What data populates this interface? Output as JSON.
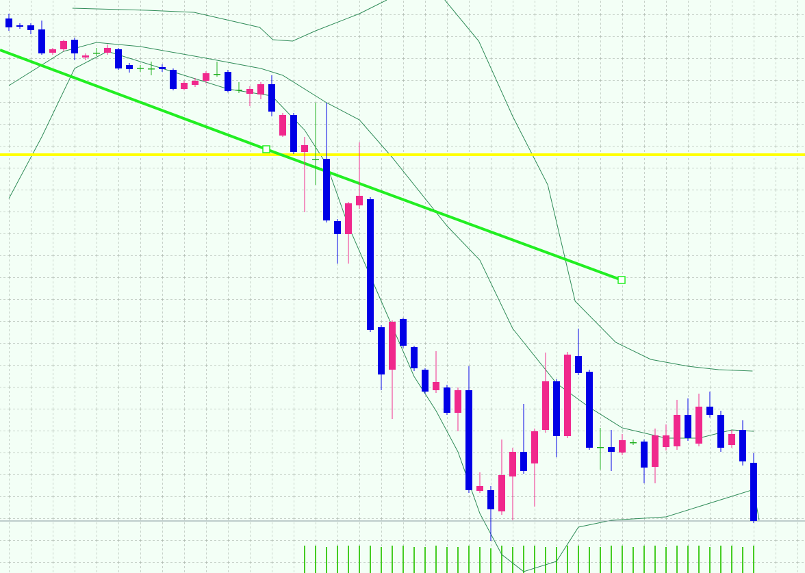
{
  "chart_data": {
    "type": "candlestick",
    "open": [
      813,
      803,
      803,
      797,
      763,
      768,
      782,
      756,
      763,
      763,
      768,
      745,
      741,
      740,
      742,
      738,
      710,
      716,
      722,
      732,
      735,
      709,
      703,
      702,
      717,
      642,
      672,
      618,
      608,
      608,
      517,
      498,
      540,
      549,
      362,
      300,
      374,
      333,
      300,
      270,
      274,
      237,
      270,
      123,
      124,
      93,
      144,
      180,
      163,
      212,
      283,
      203,
      320,
      297,
      187,
      187,
      179,
      194,
      195,
      158,
      187,
      188,
      234,
      192,
      246,
      234,
      190,
      212,
      164
    ],
    "high": [
      820,
      806,
      806,
      810,
      770,
      782,
      785,
      762,
      770,
      775,
      770,
      748,
      745,
      750,
      746,
      740,
      722,
      726,
      736,
      750,
      738,
      720,
      714,
      720,
      730,
      675,
      675,
      640,
      690,
      690,
      520,
      545,
      632,
      552,
      365,
      372,
      376,
      335,
      302,
      327,
      278,
      274,
      305,
      150,
      130,
      198,
      186,
      250,
      214,
      325,
      286,
      326,
      360,
      300,
      215,
      212,
      206,
      198,
      198,
      214,
      220,
      256,
      258,
      265,
      268,
      240,
      212,
      226,
      178
    ],
    "low": [
      795,
      798,
      790,
      760,
      760,
      765,
      752,
      752,
      758,
      760,
      738,
      734,
      735,
      730,
      735,
      708,
      708,
      713,
      718,
      728,
      705,
      704,
      685,
      695,
      670,
      640,
      615,
      530,
      570,
      515,
      455,
      455,
      535,
      355,
      270,
      228,
      332,
      298,
      265,
      266,
      234,
      210,
      120,
      120,
      50,
      88,
      80,
      148,
      100,
      208,
      172,
      200,
      292,
      183,
      154,
      152,
      175,
      190,
      134,
      134,
      182,
      183,
      196,
      188,
      230,
      180,
      186,
      160,
      76
    ],
    "close": [
      800,
      801,
      796,
      762,
      768,
      780,
      762,
      759,
      763,
      770,
      740,
      739,
      741,
      740,
      739,
      710,
      719,
      722,
      733,
      732,
      707,
      709,
      710,
      717,
      677,
      672,
      618,
      628,
      608,
      518,
      498,
      543,
      554,
      358,
      293,
      370,
      335,
      302,
      268,
      282,
      237,
      270,
      124,
      130,
      96,
      146,
      180,
      152,
      210,
      283,
      203,
      322,
      295,
      186,
      187,
      180,
      197,
      194,
      157,
      204,
      204,
      234,
      200,
      246,
      234,
      186,
      206,
      166,
      79
    ],
    "up_color": "#f0288c",
    "down_color": "#0000e6",
    "doji_color": "#20b020",
    "xlim": [
      -0.8125,
      72.6875
    ],
    "ylim": [
      3,
      840
    ],
    "grid": true,
    "bands": [
      {
        "color": "#2e8b57",
        "x": [
          5.8,
          12.6,
          16.9,
          22.9,
          24.1,
          25.9,
          28,
          32,
          34.5,
          37,
          39.8,
          42.9,
          46,
          49.2,
          51.7,
          55.4,
          58.6,
          62,
          64.8,
          67.9
        ],
        "values": [
          828,
          825,
          822,
          800,
          782,
          780,
          795,
          820,
          840,
          null,
          840,
          780,
          670,
          570,
          400,
          340,
          315,
          305,
          300,
          298
        ]
      },
      {
        "color": "#2e8b57",
        "x": [
          0,
          5,
          8,
          12,
          18,
          23,
          25,
          29,
          32,
          35,
          40,
          43,
          46,
          50,
          53,
          56,
          60,
          63,
          66,
          68
        ],
        "values": [
          715,
          765,
          778,
          772,
          755,
          740,
          730,
          690,
          665,
          610,
          510,
          460,
          360,
          280,
          245,
          215,
          200,
          200,
          212,
          210
        ]
      },
      {
        "color": "#2e8b57",
        "x": [
          0,
          3,
          6,
          9,
          15,
          20,
          24,
          27,
          29,
          31,
          34,
          37,
          39,
          41,
          43,
          45,
          47,
          50,
          52,
          55,
          60,
          65,
          68,
          68.5
        ],
        "values": [
          550,
          640,
          740,
          765,
          735,
          710,
          700,
          650,
          600,
          510,
          400,
          290,
          240,
          180,
          90,
          30,
          5,
          20,
          70,
          80,
          85,
          110,
          125,
          80
        ]
      }
    ],
    "trend_line": {
      "color": "#22ee22",
      "x": [
        -0.8125,
        23.5,
        55.94
      ],
      "values": [
        767,
        622,
        431
      ]
    },
    "level": {
      "color": "#ffff00",
      "value": 614
    },
    "volume_color": "#44cc22",
    "vlim": [
      0,
      40
    ],
    "volume": [
      null,
      null,
      null,
      null,
      null,
      null,
      null,
      null,
      null,
      null,
      null,
      null,
      null,
      null,
      null,
      null,
      null,
      null,
      null,
      null,
      null,
      null,
      null,
      null,
      null,
      null,
      null,
      40,
      40,
      38,
      40,
      40,
      40,
      40,
      38,
      40,
      40,
      38,
      38,
      40,
      38,
      38,
      40,
      38,
      36,
      40,
      38,
      40,
      40,
      38,
      38,
      40,
      40,
      38,
      38,
      40,
      40,
      38,
      40,
      40,
      38,
      40,
      40,
      40,
      38,
      40,
      40,
      38,
      40
    ]
  }
}
